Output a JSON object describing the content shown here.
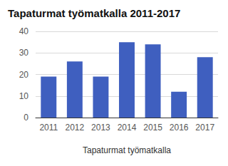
{
  "chart_data": {
    "type": "bar",
    "title": "Tapaturmat työmatkalla 2011-2017",
    "x_label": "Tapaturmat työmatkalla",
    "categories": [
      "2011",
      "2012",
      "2013",
      "2014",
      "2015",
      "2016",
      "2017"
    ],
    "values": [
      19,
      26,
      19,
      35,
      34,
      12,
      28
    ],
    "color": "#3f5fbf",
    "ylim": [
      0,
      40
    ],
    "yticks": [
      0,
      10,
      20,
      30,
      40
    ],
    "grid": true
  }
}
